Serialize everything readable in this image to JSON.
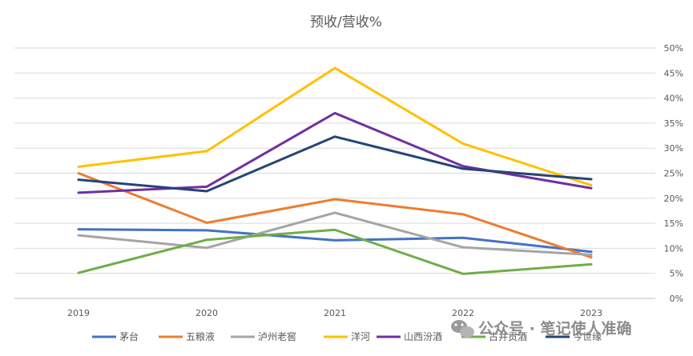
{
  "chart_data": {
    "type": "line",
    "title": "预收/营收%",
    "categories": [
      "2019",
      "2020",
      "2021",
      "2022",
      "2023"
    ],
    "ylim": [
      0,
      50
    ],
    "yticks": [
      "0%",
      "5%",
      "10%",
      "15%",
      "20%",
      "25%",
      "30%",
      "35%",
      "40%",
      "45%",
      "50%"
    ],
    "grid": true,
    "legend_position": "bottom",
    "series": [
      {
        "name": "茅台",
        "color": "#4472C4",
        "values": [
          13.8,
          13.6,
          11.6,
          12.1,
          9.3
        ]
      },
      {
        "name": "五粮液",
        "color": "#ED7D31",
        "values": [
          25.0,
          15.1,
          19.8,
          16.8,
          8.2
        ]
      },
      {
        "name": "泸州老窖",
        "color": "#A5A5A5",
        "values": [
          12.6,
          10.1,
          17.1,
          10.2,
          8.7
        ]
      },
      {
        "name": "洋河",
        "color": "#FFC000",
        "values": [
          26.3,
          29.4,
          46.0,
          30.9,
          22.6
        ]
      },
      {
        "name": "山西汾酒",
        "color": "#7030A0",
        "values": [
          21.1,
          22.3,
          37.0,
          26.4,
          22.0
        ]
      },
      {
        "name": "古井贡酒",
        "color": "#70AD47",
        "values": [
          5.1,
          11.7,
          13.7,
          4.9,
          6.8
        ]
      },
      {
        "name": "今世缘",
        "color": "#264478",
        "values": [
          23.7,
          21.4,
          32.3,
          25.9,
          23.8
        ]
      }
    ]
  },
  "watermark": {
    "text": "公众号 · 笔记使人准确",
    "icon": "wechat-icon"
  }
}
